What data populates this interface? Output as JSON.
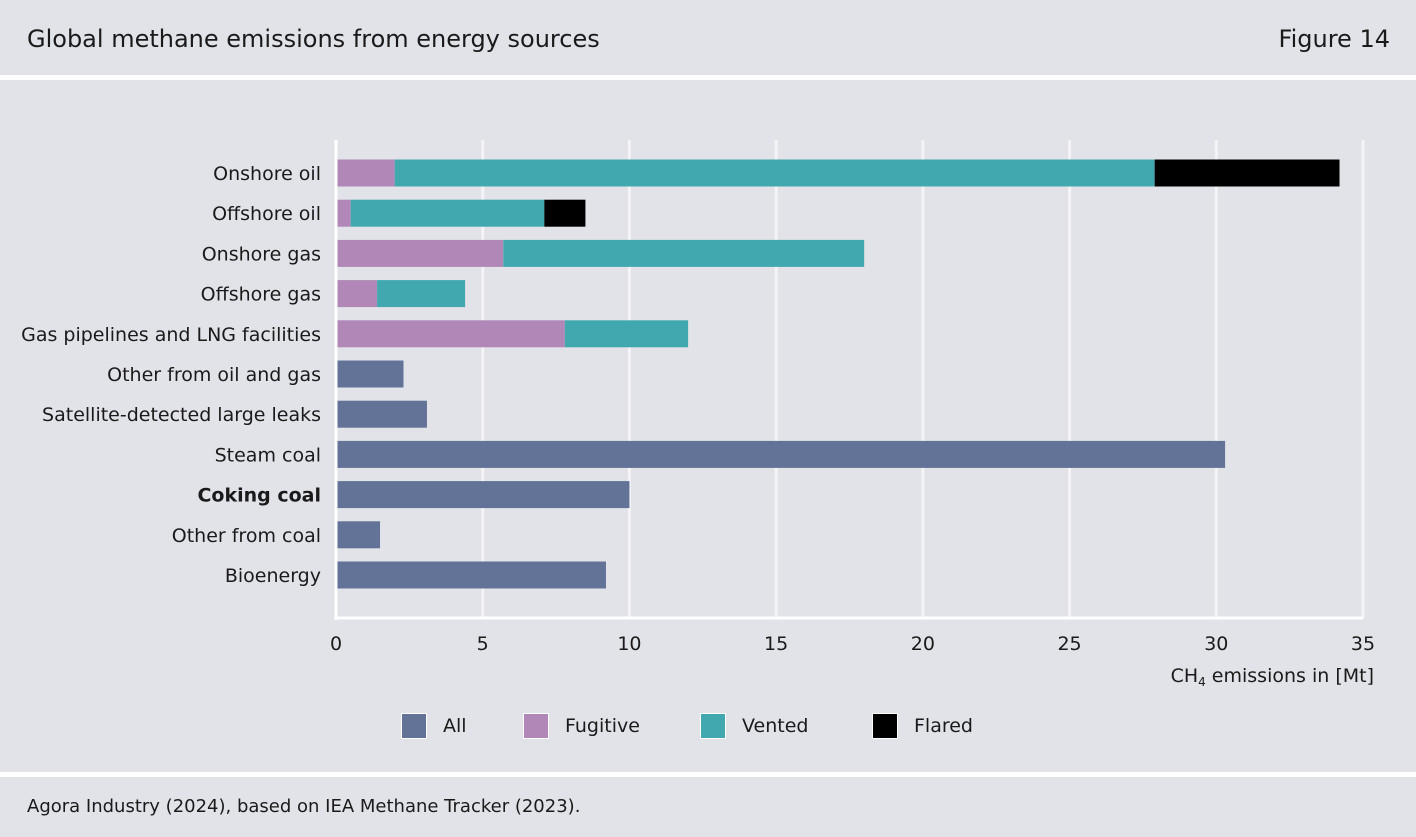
{
  "header": {
    "title": "Global methane emissions from energy sources",
    "figure": "Figure 14"
  },
  "footer": {
    "source": "Agora Industry (2024), based on IEA Methane Tracker (2023)."
  },
  "colors": {
    "All": "#627397",
    "Fugitive": "#b087b6",
    "Vented": "#41a8b0",
    "Flared": "#000000",
    "highlight_label": "#2b86b8",
    "grid": "#f4f4f6"
  },
  "chart_data": {
    "type": "bar",
    "orientation": "horizontal",
    "stacked": true,
    "title": "Global methane emissions from energy sources",
    "xlabel_prefix": "CH",
    "xlabel_sub": "4",
    "xlabel_suffix": " emissions in [Mt]",
    "xlim": [
      0,
      35
    ],
    "xticks": [
      0,
      5,
      10,
      15,
      20,
      25,
      30,
      35
    ],
    "grid": true,
    "legend_position": "bottom",
    "highlighted_category": "Coking coal",
    "categories": [
      "Onshore oil",
      "Offshore oil",
      "Onshore gas",
      "Offshore gas",
      "Gas pipelines and LNG facilities",
      "Other from oil and gas",
      "Satellite-detected large leaks",
      "Steam coal",
      "Coking coal",
      "Other from coal",
      "Bioenergy"
    ],
    "series": [
      {
        "name": "All",
        "values": [
          0,
          0,
          0,
          0,
          0,
          2.3,
          3.1,
          30.3,
          10.0,
          1.5,
          9.2
        ]
      },
      {
        "name": "Fugitive",
        "values": [
          2.0,
          0.5,
          5.7,
          1.4,
          7.8,
          0,
          0,
          0,
          0,
          0,
          0
        ]
      },
      {
        "name": "Vented",
        "values": [
          25.9,
          6.6,
          12.3,
          3.0,
          4.2,
          0,
          0,
          0,
          0,
          0,
          0
        ]
      },
      {
        "name": "Flared",
        "values": [
          6.3,
          1.4,
          0,
          0,
          0,
          0,
          0,
          0,
          0,
          0,
          0
        ]
      }
    ]
  }
}
